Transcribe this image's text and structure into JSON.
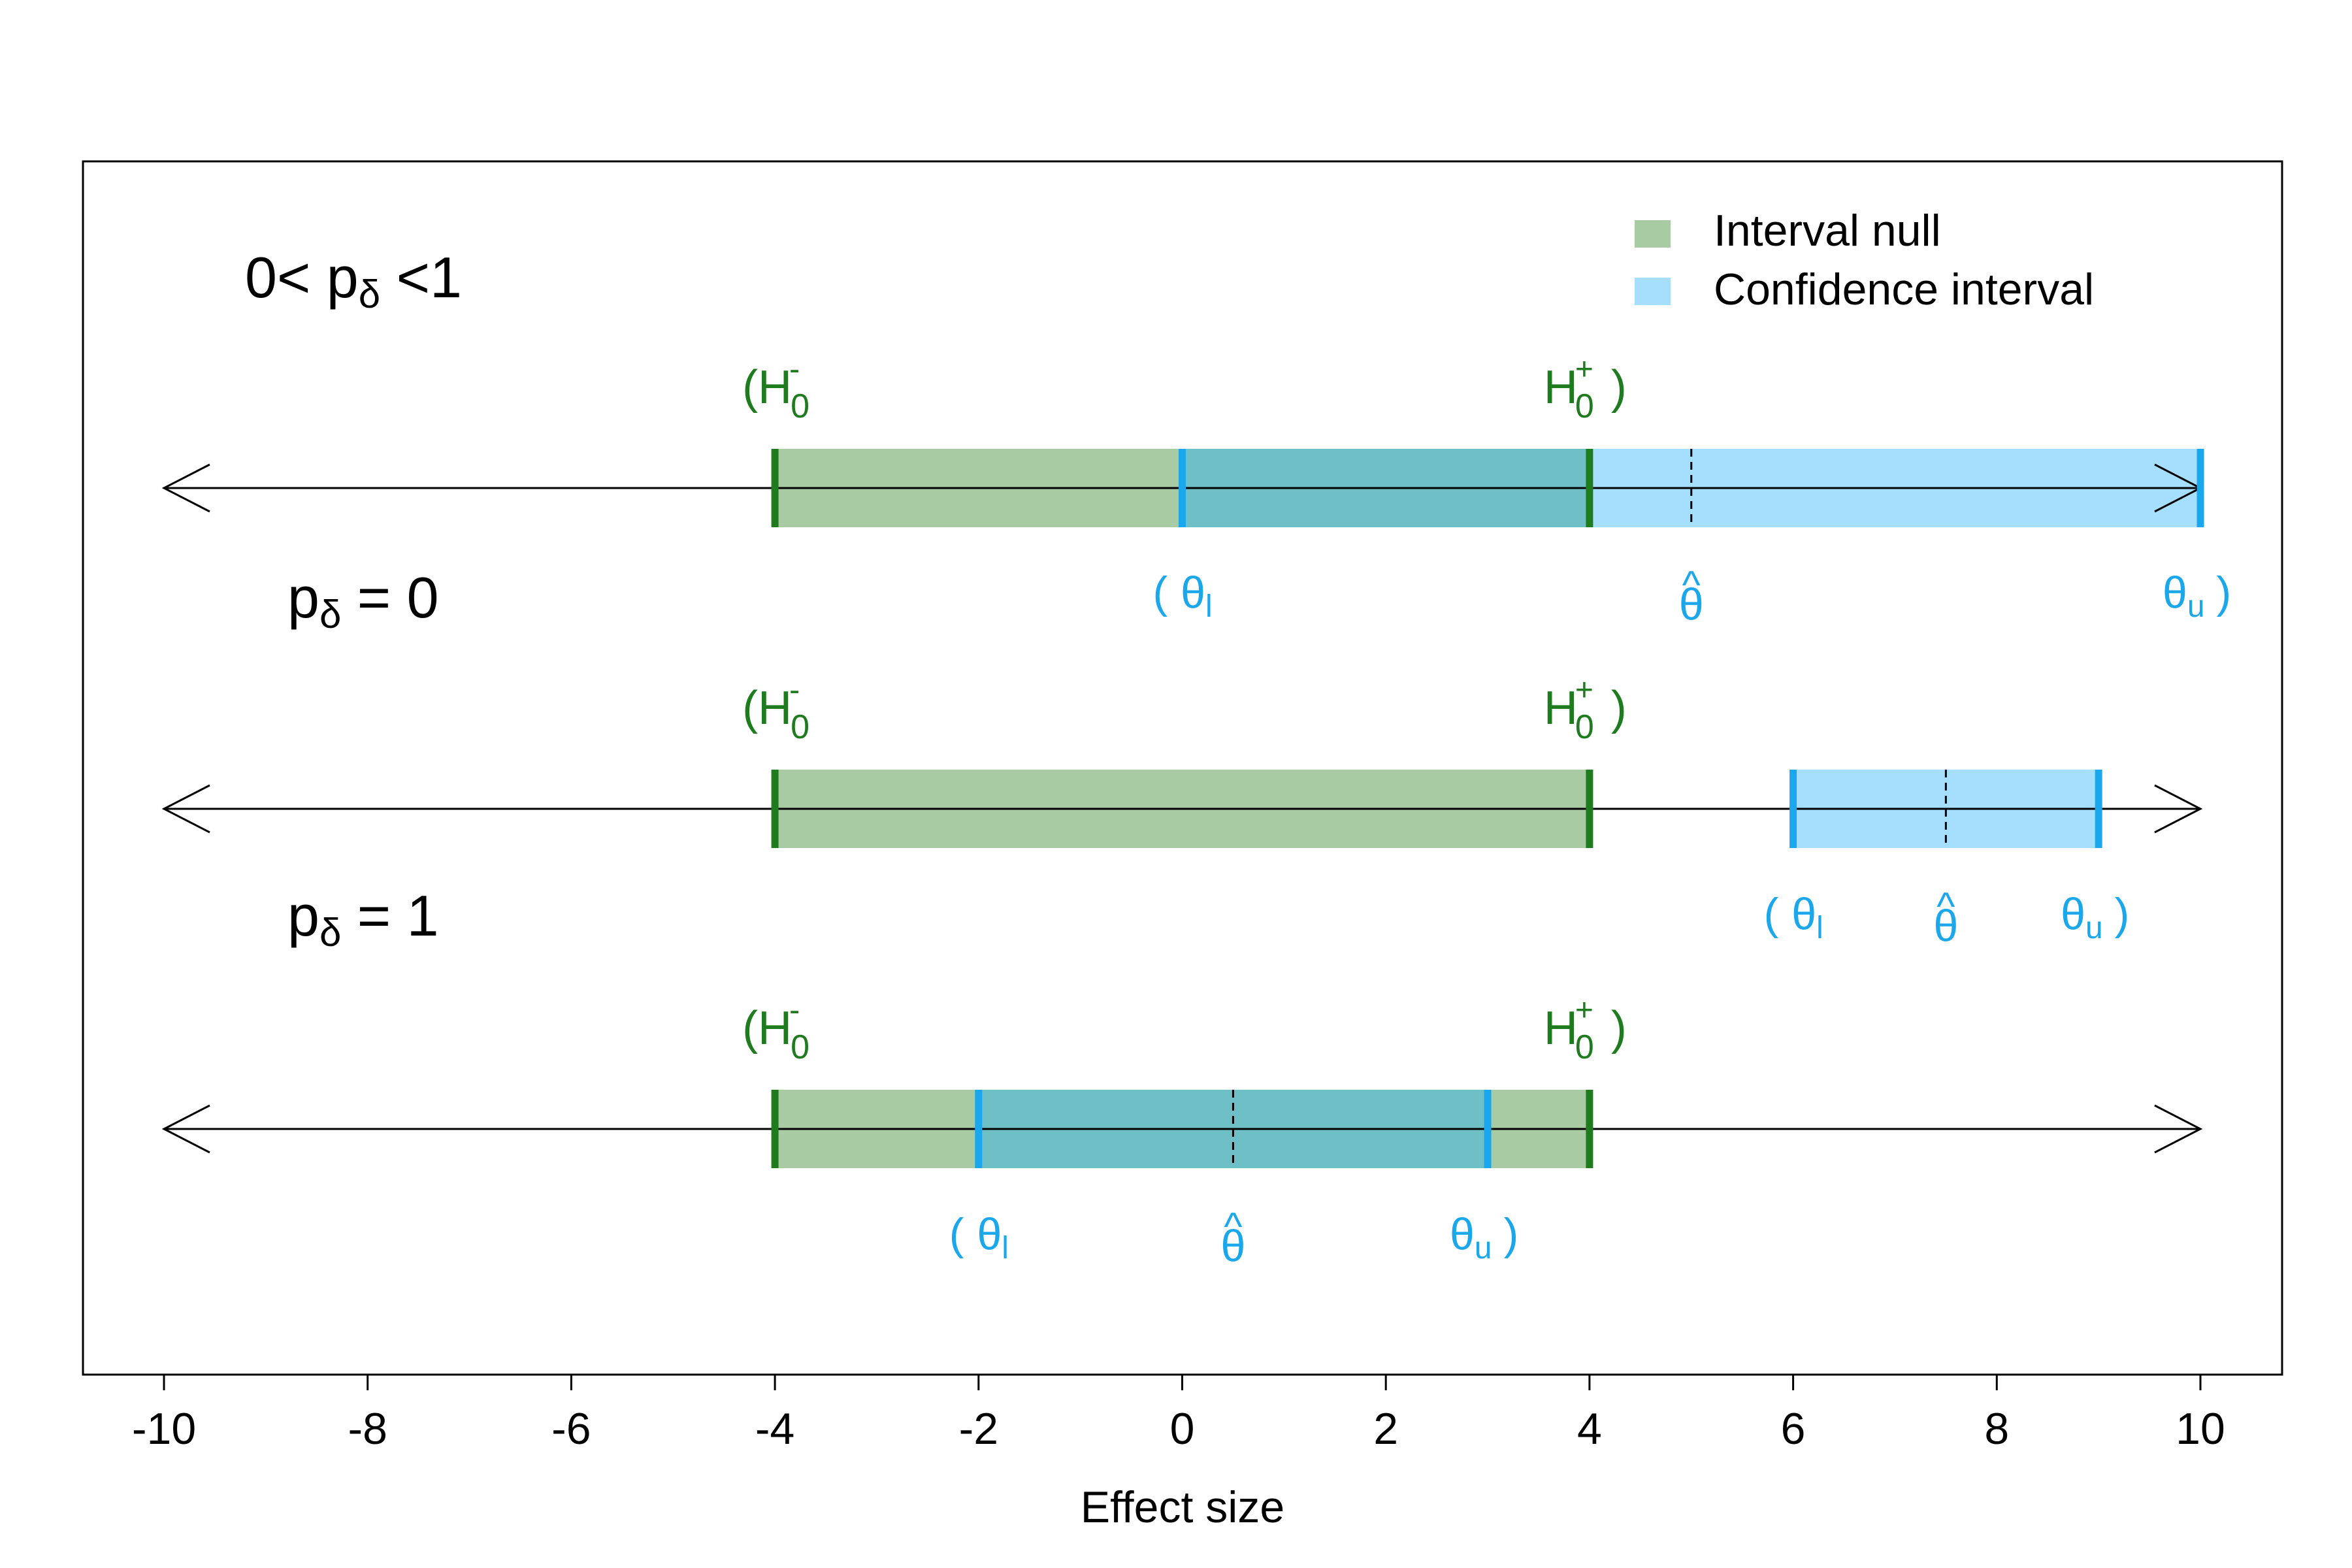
{
  "chart_data": {
    "type": "diagram",
    "xlabel": "Effect size",
    "xlim": [
      -10,
      10
    ],
    "xticks": [
      {
        "value": -10,
        "label": "-10"
      },
      {
        "value": -8,
        "label": "-8"
      },
      {
        "value": -6,
        "label": "-6"
      },
      {
        "value": -4,
        "label": "-4"
      },
      {
        "value": -2,
        "label": "-2"
      },
      {
        "value": 0,
        "label": "0"
      },
      {
        "value": 2,
        "label": "2"
      },
      {
        "value": 4,
        "label": "4"
      },
      {
        "value": 6,
        "label": "6"
      },
      {
        "value": 8,
        "label": "8"
      },
      {
        "value": 10,
        "label": "10"
      }
    ],
    "legend": {
      "placement": "top-right",
      "entries": [
        {
          "name": "Interval null",
          "color": "#a8cba4"
        },
        {
          "name": "Confidence interval",
          "color": "#a5dffd"
        }
      ]
    },
    "colors": {
      "null_fill": "#a8cba4",
      "ci_fill": "#a5dffd",
      "overlap_fill": "#6fbfc6",
      "null_edge": "#1e7b1e",
      "ci_edge": "#1aa7ec",
      "axis": "#000000"
    },
    "rows": [
      {
        "condition": {
          "base": "0< p",
          "sub": "δ",
          "rest": " <1"
        },
        "null_interval": {
          "lower": -4,
          "upper": 4
        },
        "confidence_interval": {
          "lower": 0,
          "upper": 10,
          "estimate": 5
        },
        "null_labels": {
          "lower": {
            "open": "(",
            "base": "H",
            "sup": "-",
            "sub": "0"
          },
          "upper": {
            "base": "H",
            "sup": "+",
            "sub": "0",
            "close": ")"
          }
        },
        "ci_labels": {
          "lower": {
            "open": "(",
            "base": "θ",
            "sub": "l"
          },
          "estimate": {
            "base": "θ",
            "accent": "^"
          },
          "upper": {
            "base": "θ",
            "sub": "u",
            "close": ")"
          }
        }
      },
      {
        "condition": {
          "base": "p",
          "sub": "δ",
          "rest": " = 0"
        },
        "null_interval": {
          "lower": -4,
          "upper": 4
        },
        "confidence_interval": {
          "lower": 6,
          "upper": 9,
          "estimate": 7.5
        },
        "null_labels": {
          "lower": {
            "open": "(",
            "base": "H",
            "sup": "-",
            "sub": "0"
          },
          "upper": {
            "base": "H",
            "sup": "+",
            "sub": "0",
            "close": ")"
          }
        },
        "ci_labels": {
          "lower": {
            "open": "(",
            "base": "θ",
            "sub": "l"
          },
          "estimate": {
            "base": "θ",
            "accent": "^"
          },
          "upper": {
            "base": "θ",
            "sub": "u",
            "close": ")"
          }
        }
      },
      {
        "condition": {
          "base": "p",
          "sub": "δ",
          "rest": " = 1"
        },
        "null_interval": {
          "lower": -4,
          "upper": 4
        },
        "confidence_interval": {
          "lower": -2,
          "upper": 3,
          "estimate": 0.5
        },
        "null_labels": {
          "lower": {
            "open": "(",
            "base": "H",
            "sup": "-",
            "sub": "0"
          },
          "upper": {
            "base": "H",
            "sup": "+",
            "sub": "0",
            "close": ")"
          }
        },
        "ci_labels": {
          "lower": {
            "open": "(",
            "base": "θ",
            "sub": "l"
          },
          "estimate": {
            "base": "θ",
            "accent": "^"
          },
          "upper": {
            "base": "θ",
            "sub": "u",
            "close": ")"
          }
        }
      }
    ]
  }
}
